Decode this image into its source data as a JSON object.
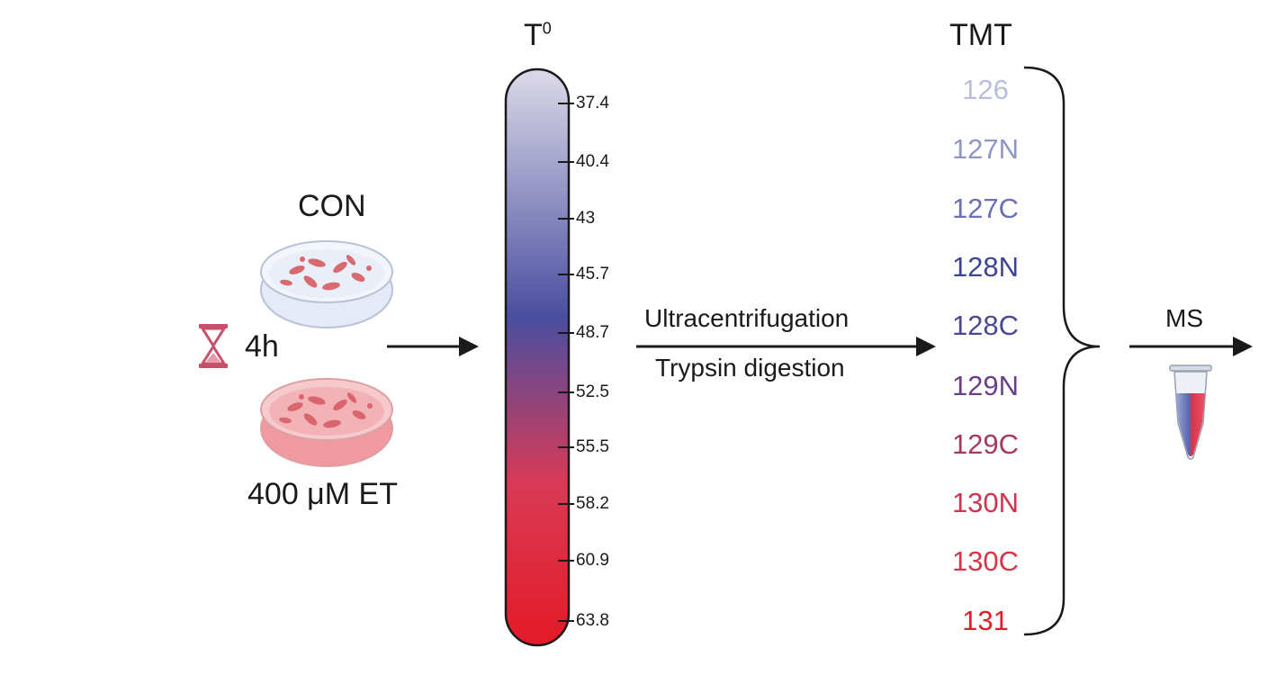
{
  "left": {
    "control_label": "CON",
    "time_label": "4h",
    "treatment_label": "400 μM ET"
  },
  "temperature": {
    "title_base": "T",
    "title_sup": "0",
    "ticks": [
      "37.4",
      "40.4",
      "43",
      "45.7",
      "48.7",
      "52.5",
      "55.5",
      "58.2",
      "60.9",
      "63.8"
    ],
    "gradient_colors": [
      "#c9c6dd",
      "#4a4ea0",
      "#e0233a"
    ]
  },
  "process": {
    "line1": "Ultracentrifugation",
    "line2": "Trypsin digestion"
  },
  "tmt": {
    "title": "TMT",
    "labels": [
      {
        "text": "126",
        "color": "#b9bedb"
      },
      {
        "text": "127N",
        "color": "#8e96c6"
      },
      {
        "text": "127C",
        "color": "#6a70b4"
      },
      {
        "text": "128N",
        "color": "#3d4495"
      },
      {
        "text": "128C",
        "color": "#4a4894"
      },
      {
        "text": "129N",
        "color": "#6b3e8a"
      },
      {
        "text": "129C",
        "color": "#a33b5e"
      },
      {
        "text": "130N",
        "color": "#cf3550"
      },
      {
        "text": "130C",
        "color": "#d93447"
      },
      {
        "text": "131",
        "color": "#e01f26"
      }
    ]
  },
  "ms": {
    "label": "MS"
  }
}
